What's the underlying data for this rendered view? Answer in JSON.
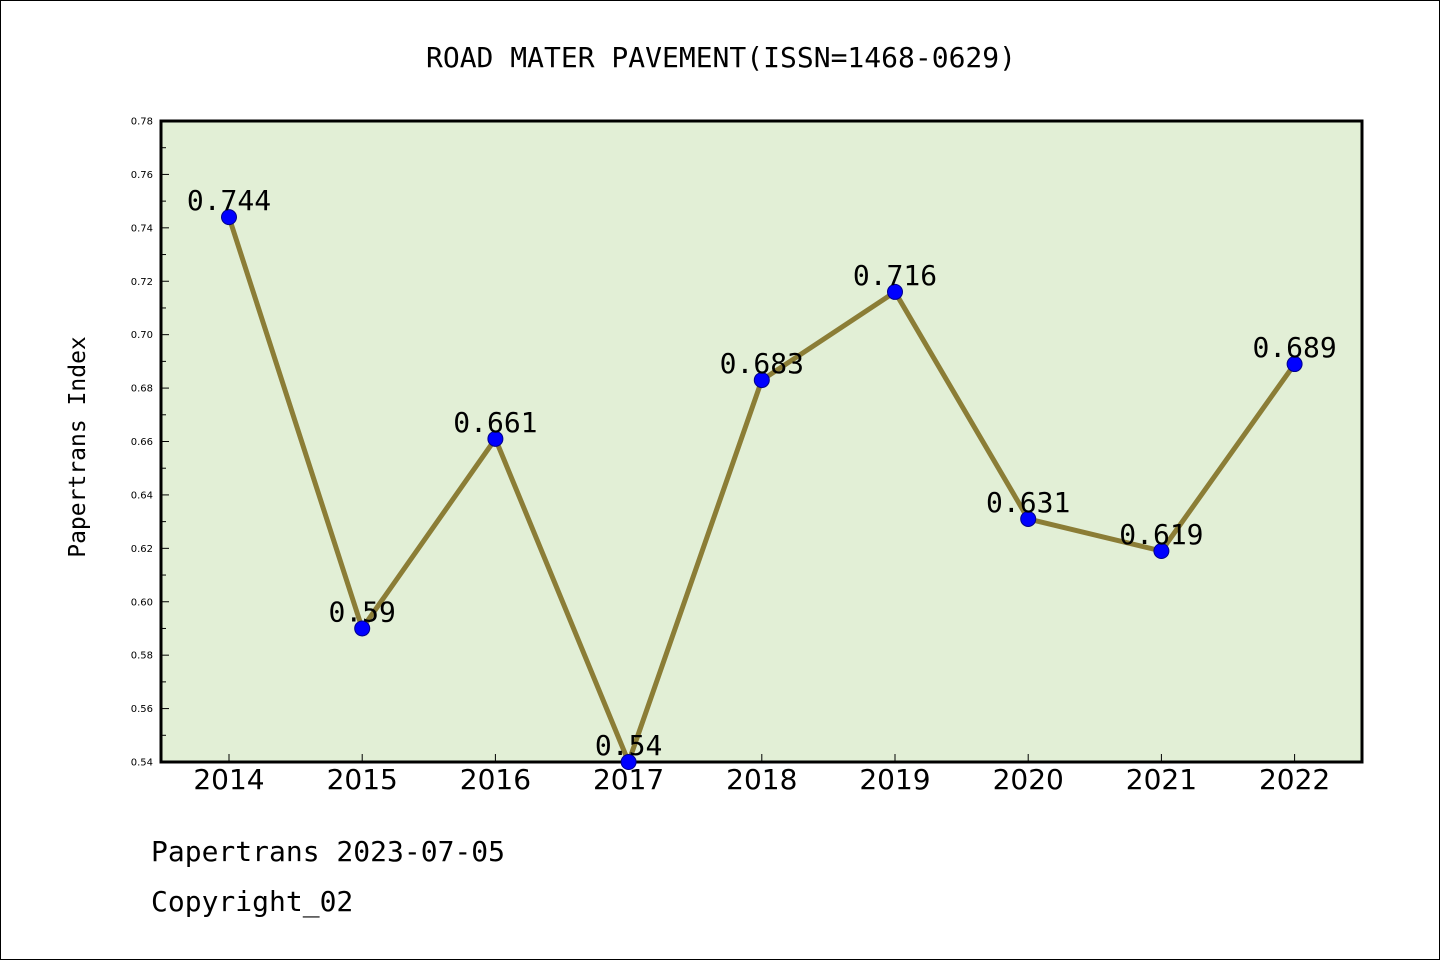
{
  "chart_data": {
    "type": "line",
    "title": "ROAD MATER PAVEMENT(ISSN=1468-0629)",
    "xlabel": "",
    "ylabel": "Papertrans Index",
    "categories": [
      "2014",
      "2015",
      "2016",
      "2017",
      "2018",
      "2019",
      "2020",
      "2021",
      "2022"
    ],
    "values": [
      0.744,
      0.59,
      0.661,
      0.54,
      0.683,
      0.716,
      0.631,
      0.619,
      0.689
    ],
    "data_labels": [
      "0.744",
      "0.59",
      "0.661",
      "0.54",
      "0.683",
      "0.716",
      "0.631",
      "0.619",
      "0.689"
    ],
    "ylim": [
      0.54,
      0.78
    ],
    "yticks": [
      "0.54",
      "0.56",
      "0.58",
      "0.60",
      "0.62",
      "0.64",
      "0.66",
      "0.68",
      "0.70",
      "0.72",
      "0.74",
      "0.76",
      "0.78"
    ],
    "grid": false,
    "colors": {
      "plot_background": "#e2efd6",
      "line": "#8b7d36",
      "marker": "#0000ff",
      "marker_edge": "#00008b"
    }
  },
  "footer": {
    "line1": "Papertrans 2023-07-05",
    "line2": "Copyright_02"
  }
}
